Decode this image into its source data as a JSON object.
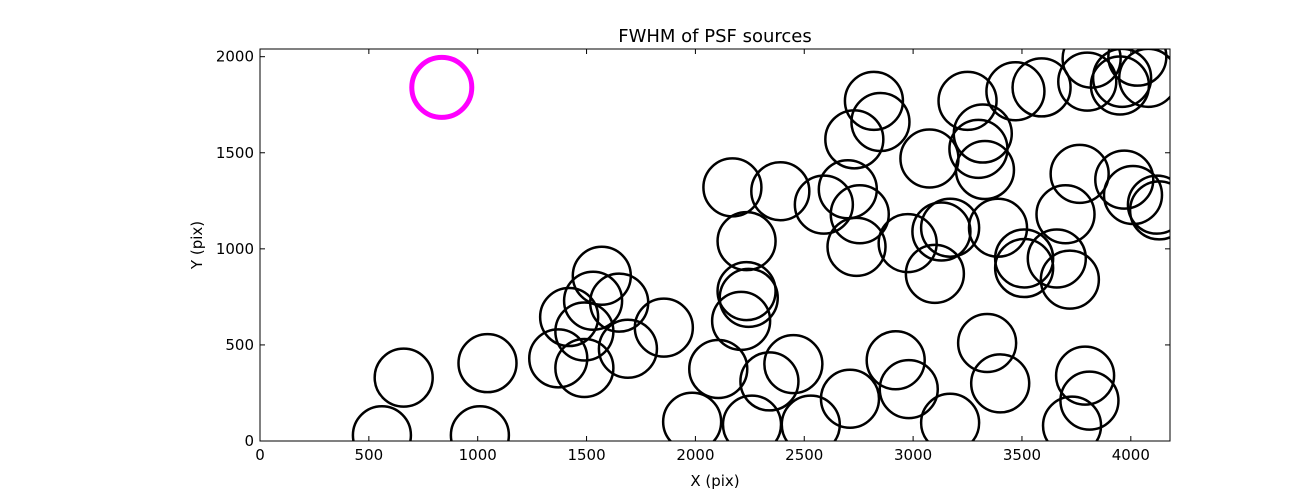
{
  "chart_data": {
    "type": "scatter",
    "title": "FWHM of PSF sources",
    "xlabel": "X (pix)",
    "ylabel": "Y (pix)",
    "xlim": [
      0,
      4180
    ],
    "ylim": [
      0,
      2040
    ],
    "xticks": [
      0,
      500,
      1000,
      1500,
      2000,
      2500,
      3000,
      3500,
      4000
    ],
    "yticks": [
      0,
      500,
      1000,
      1500,
      2000
    ],
    "grid": false,
    "marker": "open circle",
    "marker_color": "#000000",
    "highlight_color": "#ff00ff",
    "highlight_point": {
      "x": 835,
      "y": 1840
    },
    "points": [
      {
        "x": 560,
        "y": 30
      },
      {
        "x": 660,
        "y": 330
      },
      {
        "x": 1010,
        "y": 30
      },
      {
        "x": 1045,
        "y": 405
      },
      {
        "x": 1370,
        "y": 430
      },
      {
        "x": 1490,
        "y": 380
      },
      {
        "x": 1490,
        "y": 570
      },
      {
        "x": 1420,
        "y": 645
      },
      {
        "x": 1530,
        "y": 730
      },
      {
        "x": 1570,
        "y": 860
      },
      {
        "x": 1650,
        "y": 720
      },
      {
        "x": 1690,
        "y": 480
      },
      {
        "x": 1855,
        "y": 590
      },
      {
        "x": 1985,
        "y": 100
      },
      {
        "x": 2105,
        "y": 375
      },
      {
        "x": 2170,
        "y": 1320
      },
      {
        "x": 2210,
        "y": 625
      },
      {
        "x": 2235,
        "y": 780
      },
      {
        "x": 2245,
        "y": 745
      },
      {
        "x": 2235,
        "y": 1040
      },
      {
        "x": 2260,
        "y": 85
      },
      {
        "x": 2340,
        "y": 310
      },
      {
        "x": 2450,
        "y": 400
      },
      {
        "x": 2390,
        "y": 1300
      },
      {
        "x": 2530,
        "y": 85
      },
      {
        "x": 2590,
        "y": 1230
      },
      {
        "x": 2700,
        "y": 1310
      },
      {
        "x": 2710,
        "y": 220
      },
      {
        "x": 2730,
        "y": 1570
      },
      {
        "x": 2740,
        "y": 1010
      },
      {
        "x": 2755,
        "y": 1180
      },
      {
        "x": 2820,
        "y": 1770
      },
      {
        "x": 2850,
        "y": 1660
      },
      {
        "x": 2920,
        "y": 420
      },
      {
        "x": 2980,
        "y": 270
      },
      {
        "x": 2975,
        "y": 1030
      },
      {
        "x": 3075,
        "y": 1470
      },
      {
        "x": 3100,
        "y": 870
      },
      {
        "x": 3130,
        "y": 1090
      },
      {
        "x": 3170,
        "y": 1110
      },
      {
        "x": 3170,
        "y": 95
      },
      {
        "x": 3250,
        "y": 1770
      },
      {
        "x": 3300,
        "y": 1520
      },
      {
        "x": 3320,
        "y": 1600
      },
      {
        "x": 3330,
        "y": 1410
      },
      {
        "x": 3340,
        "y": 510
      },
      {
        "x": 3390,
        "y": 1110
      },
      {
        "x": 3400,
        "y": 300
      },
      {
        "x": 3470,
        "y": 1820
      },
      {
        "x": 3510,
        "y": 950
      },
      {
        "x": 3510,
        "y": 900
      },
      {
        "x": 3590,
        "y": 1840
      },
      {
        "x": 3660,
        "y": 950
      },
      {
        "x": 3700,
        "y": 1180
      },
      {
        "x": 3720,
        "y": 840
      },
      {
        "x": 3730,
        "y": 80
      },
      {
        "x": 3765,
        "y": 1390
      },
      {
        "x": 3790,
        "y": 340
      },
      {
        "x": 3810,
        "y": 210
      },
      {
        "x": 3800,
        "y": 1870
      },
      {
        "x": 3820,
        "y": 1990
      },
      {
        "x": 3950,
        "y": 1850
      },
      {
        "x": 3960,
        "y": 1890
      },
      {
        "x": 3970,
        "y": 1360
      },
      {
        "x": 4010,
        "y": 1280
      },
      {
        "x": 4030,
        "y": 2000
      },
      {
        "x": 4080,
        "y": 1890
      },
      {
        "x": 4120,
        "y": 1230
      },
      {
        "x": 4130,
        "y": 1200
      }
    ]
  }
}
